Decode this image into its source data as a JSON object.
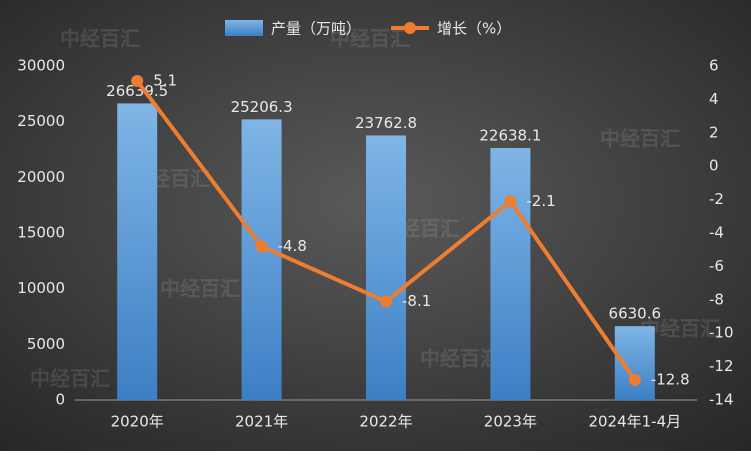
{
  "chart_data": {
    "type": "bar-line",
    "watermark": "中经百汇",
    "categories": [
      "2020年",
      "2021年",
      "2022年",
      "2023年",
      "2024年1-4月"
    ],
    "series": [
      {
        "name": "产量（万吨）",
        "type": "bar",
        "color": "#5b9bd5",
        "values": [
          26639.5,
          25206.3,
          23762.8,
          22638.1,
          6630.6
        ]
      },
      {
        "name": "增长（%）",
        "type": "line",
        "axis": "y2",
        "color": "#ed7d31",
        "values": [
          5.1,
          -4.8,
          -8.1,
          -2.1,
          -12.8
        ]
      }
    ],
    "ylim": [
      0,
      30000
    ],
    "yticks": [
      0,
      5000,
      10000,
      15000,
      20000,
      25000,
      30000
    ],
    "y2lim": [
      -14,
      6
    ],
    "y2ticks": [
      -14,
      -12,
      -10,
      -8,
      -6,
      -4,
      -2,
      0,
      2,
      4,
      6
    ],
    "legend": "top"
  }
}
